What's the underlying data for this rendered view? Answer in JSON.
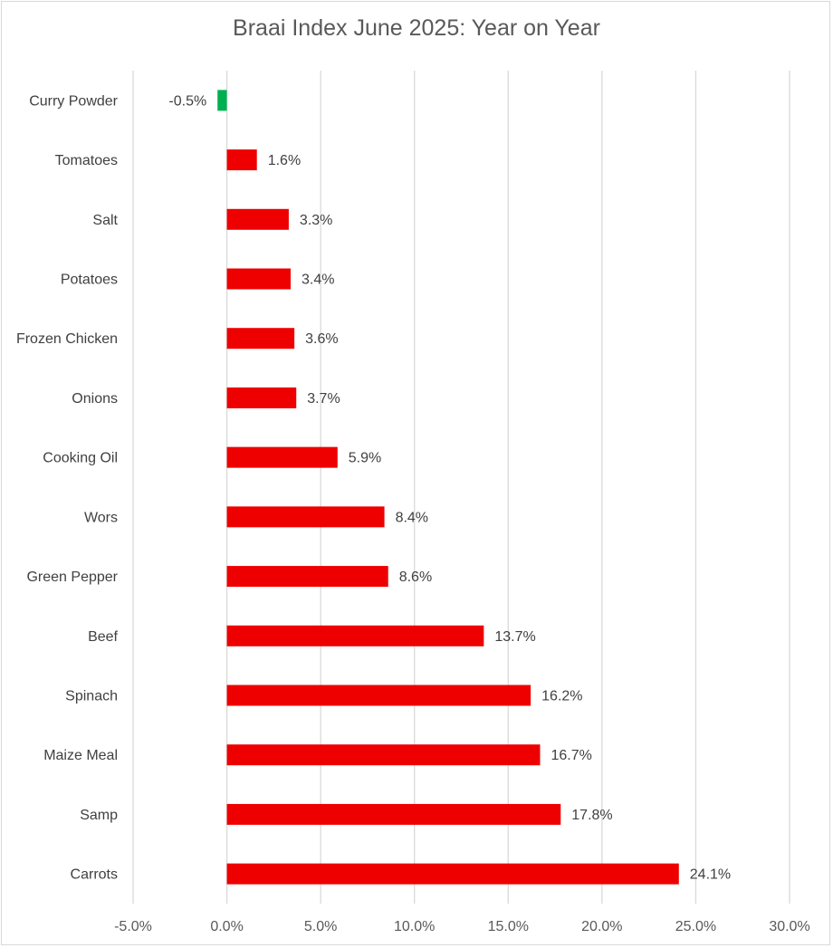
{
  "chart_data": {
    "type": "bar",
    "orientation": "horizontal",
    "title": "Braai Index June 2025: Year on Year",
    "categories": [
      "Curry Powder",
      "Tomatoes",
      "Salt",
      "Potatoes",
      "Frozen Chicken",
      "Onions",
      "Cooking Oil",
      "Wors",
      "Green Pepper",
      "Beef",
      "Spinach",
      "Maize Meal",
      "Samp",
      "Carrots"
    ],
    "values": [
      -0.5,
      1.6,
      3.3,
      3.4,
      3.6,
      3.7,
      5.9,
      8.4,
      8.6,
      13.7,
      16.2,
      16.7,
      17.8,
      24.1
    ],
    "data_labels": [
      "-0.5%",
      "1.6%",
      "3.3%",
      "3.4%",
      "3.6%",
      "3.7%",
      "5.9%",
      "8.4%",
      "8.6%",
      "13.7%",
      "16.2%",
      "16.7%",
      "17.8%",
      "24.1%"
    ],
    "x_ticks": [
      "-5.0%",
      "0.0%",
      "5.0%",
      "10.0%",
      "15.0%",
      "20.0%",
      "25.0%",
      "30.0%"
    ],
    "xlim": [
      -5,
      30
    ],
    "xlabel": "",
    "ylabel": "",
    "grid": "vertical",
    "legend": "none",
    "colors": {
      "positive": "#ee0000",
      "negative": "#00b050",
      "grid": "#d9d9d9"
    }
  }
}
